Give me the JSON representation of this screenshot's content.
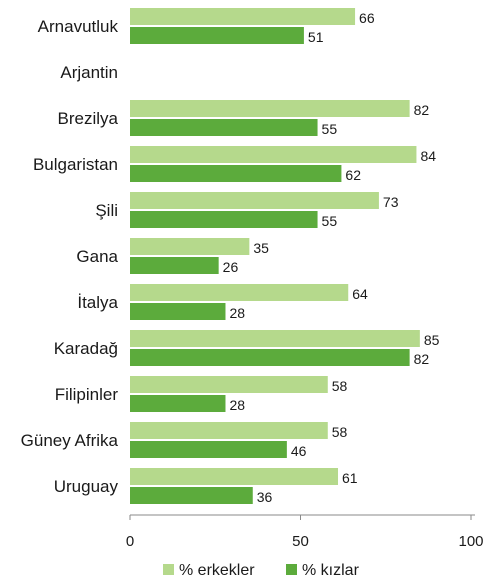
{
  "chart_data": {
    "type": "bar",
    "orientation": "horizontal",
    "categories": [
      "Arnavutluk",
      "Arjantin",
      "Brezilya",
      "Bulgaristan",
      "Şili",
      "Gana",
      "İtalya",
      "Karadağ",
      "Filipinler",
      "Güney Afrika",
      "Uruguay"
    ],
    "series": [
      {
        "name": "% erkekler",
        "color": "#b5d98c",
        "values": [
          66,
          null,
          82,
          84,
          73,
          35,
          64,
          85,
          58,
          58,
          61
        ]
      },
      {
        "name": "% kızlar",
        "color": "#5cab3c",
        "values": [
          51,
          null,
          55,
          62,
          55,
          26,
          28,
          82,
          28,
          46,
          36
        ]
      }
    ],
    "xlim": [
      0,
      100
    ],
    "xticks": [
      0,
      50,
      100
    ],
    "grid": false,
    "legend": "bottom",
    "title": "",
    "xlabel": "",
    "ylabel": ""
  }
}
